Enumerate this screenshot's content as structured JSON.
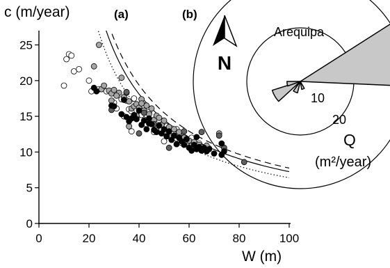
{
  "chart_data": [
    {
      "panel": "(a)",
      "type": "scatter",
      "ylabel": "c (m/year)",
      "xlabel": "W (m)",
      "xlim": [
        0,
        100
      ],
      "ylim": [
        0,
        27
      ],
      "xticks": [
        "0",
        "20",
        "40",
        "60",
        "80",
        "100"
      ],
      "yticks": [
        "0",
        "5",
        "10",
        "15",
        "20",
        "25"
      ],
      "grid": false,
      "marker_colors": {
        "white": "#ffffff",
        "gray": "#a6a6a6",
        "dark_gray": "#5f5f5f",
        "black": "#000000"
      },
      "points": {
        "white": [
          [
            10,
            19.3
          ],
          [
            11,
            23
          ],
          [
            12,
            23.7
          ],
          [
            13,
            23.5
          ],
          [
            14,
            21.3
          ],
          [
            16,
            21.6
          ],
          [
            20,
            20
          ],
          [
            21,
            18.5
          ],
          [
            24,
            18.8
          ],
          [
            27,
            18.5
          ],
          [
            30,
            16.9
          ],
          [
            31,
            16.1
          ],
          [
            33,
            17.4
          ],
          [
            35,
            17.2
          ],
          [
            36,
            16
          ],
          [
            37,
            15.7
          ],
          [
            38,
            17.5
          ],
          [
            39,
            14.8
          ],
          [
            40,
            16.3
          ],
          [
            41,
            15.2
          ],
          [
            42,
            16.5
          ],
          [
            43,
            15.2
          ],
          [
            44,
            15.6
          ],
          [
            45,
            14.2
          ],
          [
            46,
            12.8
          ],
          [
            47,
            14.9
          ],
          [
            48,
            14.5
          ],
          [
            50,
            11.5
          ],
          [
            51,
            13.6
          ],
          [
            52,
            12.2
          ],
          [
            53,
            13.3
          ],
          [
            55,
            11.9
          ],
          [
            56,
            12.6
          ],
          [
            57,
            11.3
          ],
          [
            58,
            12.1
          ],
          [
            60,
            11
          ],
          [
            61,
            12
          ],
          [
            62,
            10.9
          ],
          [
            64,
            11.2
          ],
          [
            66,
            10.5
          ],
          [
            67,
            10.6
          ],
          [
            68,
            10.5
          ],
          [
            37,
            12.9
          ],
          [
            43,
            13.9
          ],
          [
            55,
            13.2
          ],
          [
            34,
            15
          ]
        ],
        "gray": [
          [
            22,
            22
          ],
          [
            24,
            25
          ],
          [
            25,
            18.8
          ],
          [
            26,
            19.3
          ],
          [
            28,
            18.6
          ],
          [
            29,
            18.2
          ],
          [
            30,
            18.7
          ],
          [
            32,
            18.3
          ],
          [
            33,
            20.4
          ],
          [
            34,
            17.7
          ],
          [
            35,
            18.3
          ],
          [
            36,
            17.1
          ],
          [
            37,
            16.1
          ],
          [
            38,
            16.4
          ],
          [
            39,
            16.7
          ],
          [
            40,
            16.2
          ],
          [
            41,
            17.4
          ],
          [
            42,
            15.8
          ],
          [
            43,
            16.5
          ],
          [
            44,
            15.3
          ],
          [
            45,
            16.1
          ],
          [
            46,
            14.5
          ],
          [
            47,
            15.1
          ],
          [
            48,
            14.8
          ],
          [
            49,
            13.8
          ],
          [
            50,
            14.4
          ],
          [
            51,
            12.7
          ],
          [
            52,
            13.5
          ],
          [
            53,
            12.2
          ],
          [
            54,
            13.2
          ],
          [
            55,
            12.3
          ],
          [
            56,
            12.8
          ],
          [
            57,
            11.6
          ],
          [
            58,
            12
          ],
          [
            59,
            11.2
          ],
          [
            60,
            11.6
          ],
          [
            61,
            10.9
          ],
          [
            62,
            11.4
          ],
          [
            63,
            10.8
          ],
          [
            64,
            11
          ],
          [
            65,
            10.7
          ],
          [
            66,
            10.4
          ],
          [
            67,
            10.9
          ],
          [
            72,
            12.6
          ],
          [
            36,
            13.6
          ],
          [
            41,
            16.8
          ],
          [
            29,
            17.2
          ],
          [
            47,
            13
          ],
          [
            39,
            15.1
          ],
          [
            31,
            17.9
          ]
        ],
        "dark_gray": [
          [
            29,
            15.9
          ],
          [
            35,
            18.4
          ],
          [
            40,
            12.6
          ],
          [
            58,
            12.9
          ],
          [
            65,
            12.8
          ],
          [
            72,
            12.3
          ],
          [
            74,
            10.6
          ],
          [
            82,
            8.6
          ],
          [
            46,
            13.9
          ],
          [
            42,
            15.5
          ],
          [
            52,
            10.6
          ]
        ],
        "black": [
          [
            22,
            19
          ],
          [
            23,
            18.5
          ],
          [
            29,
            16.5
          ],
          [
            30,
            16.4
          ],
          [
            33,
            15.3
          ],
          [
            34,
            17.3
          ],
          [
            35,
            14.9
          ],
          [
            36,
            14.3
          ],
          [
            38,
            15.2
          ],
          [
            39,
            14.6
          ],
          [
            40,
            15.8
          ],
          [
            41,
            13.8
          ],
          [
            42,
            14.4
          ],
          [
            43,
            13.2
          ],
          [
            44,
            14
          ],
          [
            45,
            13.9
          ],
          [
            46,
            13.1
          ],
          [
            47,
            12.8
          ],
          [
            48,
            13.7
          ],
          [
            49,
            12.6
          ],
          [
            50,
            13.2
          ],
          [
            51,
            12.2
          ],
          [
            52,
            12.9
          ],
          [
            53,
            11.7
          ],
          [
            54,
            12.3
          ],
          [
            55,
            11.1
          ],
          [
            56,
            12
          ],
          [
            57,
            11.5
          ],
          [
            58,
            11
          ],
          [
            59,
            11.8
          ],
          [
            60,
            10.6
          ],
          [
            61,
            10.2
          ],
          [
            62,
            11
          ],
          [
            63,
            10.4
          ],
          [
            64,
            10.7
          ],
          [
            65,
            10.2
          ],
          [
            66,
            10.6
          ],
          [
            67,
            10.1
          ],
          [
            68,
            10.4
          ],
          [
            70,
            9.8
          ],
          [
            73,
            11.2
          ],
          [
            73,
            9.6
          ],
          [
            74,
            10.1
          ],
          [
            63,
            12.1
          ],
          [
            37,
            14.7
          ],
          [
            44,
            14.7
          ]
        ]
      },
      "fit_curves": [
        {
          "style": "dashed",
          "coefficient": 775
        },
        {
          "style": "solid",
          "coefficient": 725
        },
        {
          "style": "dotted",
          "coefficient": 640
        }
      ]
    },
    {
      "panel": "(b)",
      "type": "rose",
      "location": "Arequipa",
      "north_label": "N",
      "quantity_label": "Q",
      "unit_label": "(m²/year)",
      "ring_labels": [
        "10",
        "20"
      ],
      "rings": [
        10,
        20
      ],
      "sectors": [
        {
          "bearing_deg": 75,
          "width_deg": 35,
          "value": 20.0
        },
        {
          "bearing_deg": 240,
          "width_deg": 25,
          "value": 5.5
        },
        {
          "bearing_deg": 260,
          "width_deg": 20,
          "value": 2.5
        },
        {
          "bearing_deg": 205,
          "width_deg": 22,
          "value": 2.2
        },
        {
          "bearing_deg": 160,
          "width_deg": 20,
          "value": 1.5
        }
      ],
      "sector_fill": "#c8c8c8"
    }
  ]
}
